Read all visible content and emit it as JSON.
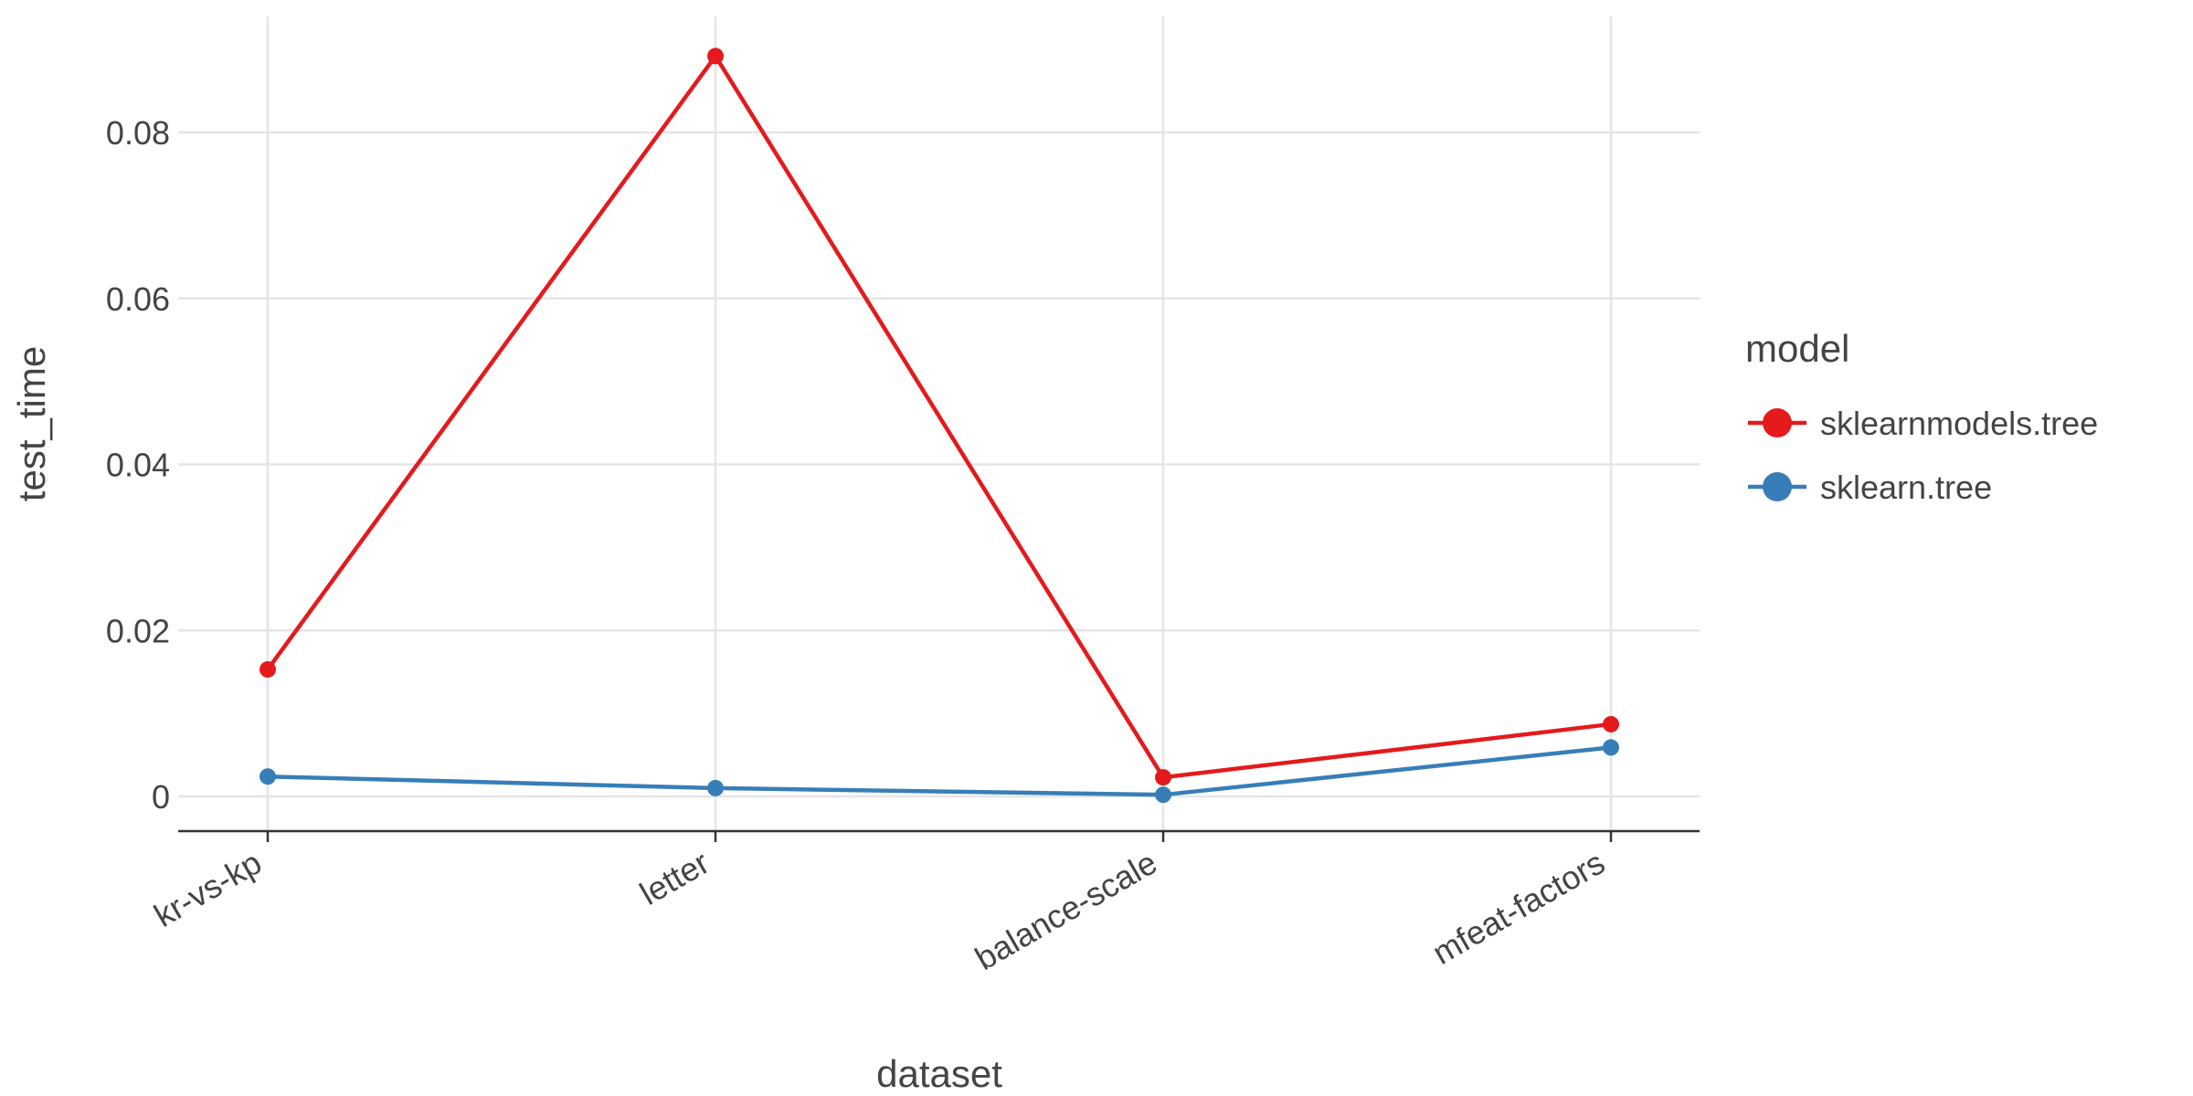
{
  "chart_data": {
    "type": "line",
    "xlabel": "dataset",
    "ylabel": "test_time",
    "categories": [
      "kr-vs-kp",
      "letter",
      "balance-scale",
      "mfeat-factors"
    ],
    "ylim": [
      -0.0041,
      0.0935
    ],
    "yticks": [
      0,
      0.02,
      0.04,
      0.06,
      0.08
    ],
    "ytick_labels": [
      "0",
      "0.02",
      "0.04",
      "0.06",
      "0.08"
    ],
    "grid": true,
    "legend": {
      "title": "model",
      "placement": "right"
    },
    "series": [
      {
        "name": "sklearnmodels.tree",
        "color": "#e41a1c",
        "values": [
          0.0153,
          0.0892,
          0.0023,
          0.0087
        ]
      },
      {
        "name": "sklearn.tree",
        "color": "#377eb8",
        "values": [
          0.0024,
          0.001,
          0.0002,
          0.0059
        ]
      }
    ]
  }
}
